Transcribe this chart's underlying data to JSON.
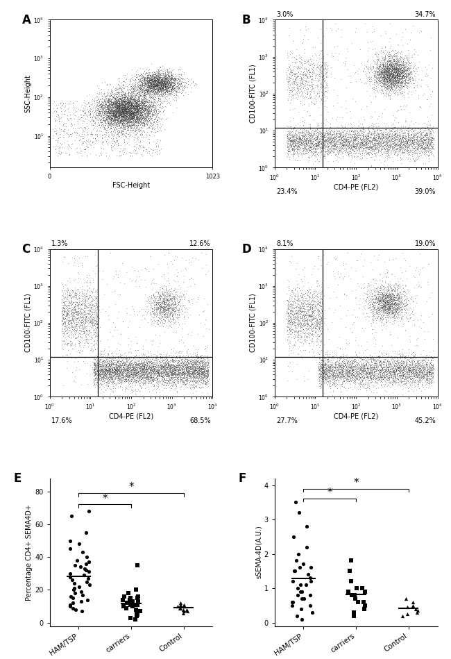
{
  "panel_A": {
    "xlabel": "FSC-Height",
    "ylabel": "SSC-Height",
    "xlim": [
      0,
      1023
    ],
    "ylim_log": [
      1,
      10000
    ],
    "xticks": [
      0,
      1023
    ]
  },
  "panel_B": {
    "xlabel": "CD4-PE (FL2)",
    "ylabel": "CD100-FITC (FL1)",
    "xlim": [
      1,
      10000
    ],
    "ylim": [
      1,
      10000
    ],
    "gate_x": 15,
    "gate_y": 12,
    "top_left_pct": "3.0%",
    "top_right_pct": "34.7%",
    "bot_left_pct": "23.4%",
    "bot_right_pct": "39.0%"
  },
  "panel_C": {
    "xlabel": "CD4-PE (FL2)",
    "ylabel": "CD100-FITC (FL1)",
    "xlim": [
      1,
      10000
    ],
    "ylim": [
      1,
      10000
    ],
    "gate_x": 15,
    "gate_y": 12,
    "top_left_pct": "1.3%",
    "top_right_pct": "12.6%",
    "bot_left_pct": "17.6%",
    "bot_right_pct": "68.5%"
  },
  "panel_D": {
    "xlabel": "CD4-PE (FL2)",
    "ylabel": "CD100-FITC (FL1)",
    "xlim": [
      1,
      10000
    ],
    "ylim": [
      1,
      10000
    ],
    "gate_x": 15,
    "gate_y": 12,
    "top_left_pct": "8.1%",
    "top_right_pct": "19.0%",
    "bot_left_pct": "27.7%",
    "bot_right_pct": "45.2%"
  },
  "panel_E": {
    "ylabel": "Percentage CD4+ SEMA4D+",
    "ylim": [
      0,
      80
    ],
    "yticks": [
      0,
      20,
      40,
      60,
      80
    ],
    "HAM_data": [
      68,
      65,
      55,
      50,
      48,
      45,
      43,
      40,
      38,
      37,
      36,
      35,
      34,
      33,
      32,
      31,
      30,
      29,
      28,
      27,
      26,
      25,
      24,
      23,
      22,
      21,
      20,
      19,
      18,
      17,
      16,
      15,
      14,
      13,
      12,
      11,
      10,
      9,
      8,
      7
    ],
    "carriers_data": [
      35,
      20,
      18,
      16,
      15,
      14,
      13,
      12,
      11,
      10,
      9,
      8,
      7,
      6,
      5,
      4,
      3,
      2,
      10,
      11,
      12,
      13,
      14,
      15,
      16,
      13,
      11
    ],
    "control_data": [
      12,
      11,
      10,
      10,
      9,
      9,
      8,
      8,
      7,
      7,
      6,
      10,
      11
    ]
  },
  "panel_F": {
    "ylabel": "sSEMA-4D(A.U.)",
    "ylim": [
      0,
      4
    ],
    "yticks": [
      0,
      1,
      2,
      3,
      4
    ],
    "HAM_data": [
      3.5,
      3.2,
      2.8,
      2.5,
      2.2,
      2.0,
      1.8,
      1.7,
      1.6,
      1.5,
      1.4,
      1.3,
      1.2,
      1.1,
      1.0,
      0.9,
      0.8,
      0.7,
      0.6,
      0.5,
      0.4,
      0.3,
      0.2,
      0.1,
      1.5,
      1.6,
      1.1,
      0.9,
      0.8,
      1.2,
      0.7,
      0.6,
      0.5
    ],
    "carriers_data": [
      1.8,
      1.5,
      1.2,
      1.0,
      0.9,
      0.8,
      0.7,
      0.6,
      0.5,
      0.4,
      0.3,
      0.2,
      0.8,
      0.9,
      1.0,
      0.6
    ],
    "control_data": [
      0.7,
      0.6,
      0.5,
      0.45,
      0.4,
      0.35,
      0.3,
      0.25,
      0.2
    ]
  }
}
